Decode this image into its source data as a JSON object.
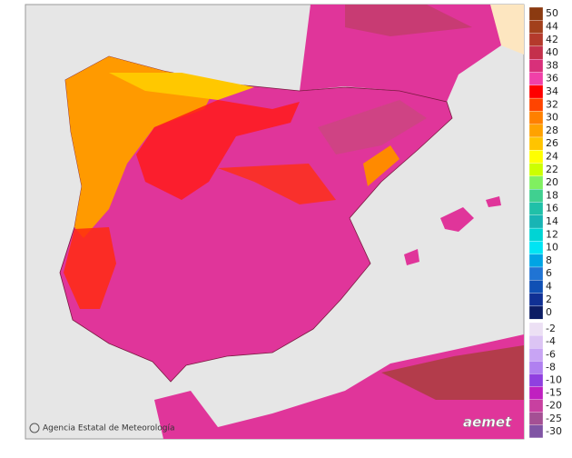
{
  "legend": {
    "items": [
      {
        "label": "50",
        "color": "#8b3a10"
      },
      {
        "label": "44",
        "color": "#a2401c"
      },
      {
        "label": "42",
        "color": "#b43a2c"
      },
      {
        "label": "40",
        "color": "#c4304c"
      },
      {
        "label": "38",
        "color": "#d8307a"
      },
      {
        "label": "36",
        "color": "#f040a8"
      },
      {
        "label": "34",
        "color": "#ff0000"
      },
      {
        "label": "32",
        "color": "#ff4400"
      },
      {
        "label": "30",
        "color": "#ff8000"
      },
      {
        "label": "28",
        "color": "#ffa200"
      },
      {
        "label": "26",
        "color": "#ffc400"
      },
      {
        "label": "24",
        "color": "#ffff00"
      },
      {
        "label": "22",
        "color": "#ccff00"
      },
      {
        "label": "20",
        "color": "#80f060"
      },
      {
        "label": "18",
        "color": "#40d090"
      },
      {
        "label": "16",
        "color": "#20c0a8"
      },
      {
        "label": "14",
        "color": "#18b4b4"
      },
      {
        "label": "12",
        "color": "#00d4d4"
      },
      {
        "label": "10",
        "color": "#00e4f4"
      },
      {
        "label": "8",
        "color": "#00a4e4"
      },
      {
        "label": "6",
        "color": "#2074d4"
      },
      {
        "label": "4",
        "color": "#1050b4"
      },
      {
        "label": "2",
        "color": "#103094"
      },
      {
        "label": "0",
        "color": "#0c1c64"
      }
    ],
    "negative_items": [
      {
        "label": "-2",
        "color": "#ece0f4"
      },
      {
        "label": "-4",
        "color": "#dcc4f4"
      },
      {
        "label": "-6",
        "color": "#c8a4f4"
      },
      {
        "label": "-8",
        "color": "#b080f0"
      },
      {
        "label": "-10",
        "color": "#9040e0"
      },
      {
        "label": "-15",
        "color": "#c020c0"
      },
      {
        "label": "-20",
        "color": "#c840a0"
      },
      {
        "label": "-25",
        "color": "#a45094"
      },
      {
        "label": "-30",
        "color": "#8054a4"
      }
    ]
  },
  "credit": {
    "agency": "Agencia Estatal de Meteorología",
    "logo": "aemet"
  }
}
